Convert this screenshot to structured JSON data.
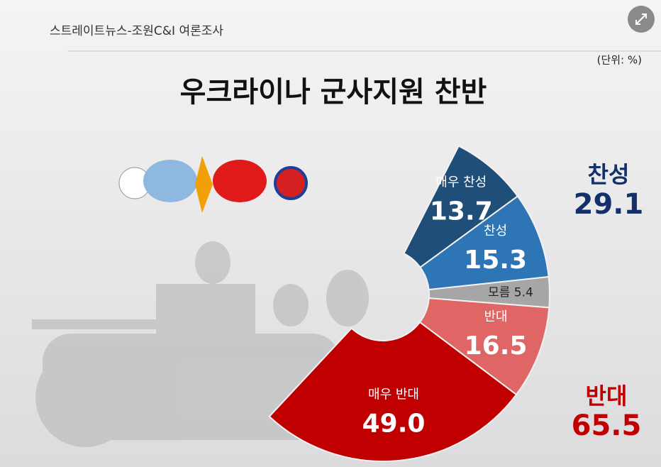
{
  "chart_data": {
    "type": "pie",
    "source": "스트레이트뉴스-조원C&I 여론조사",
    "unit": "(단위: %)",
    "title": "우크라이나 군사지원 찬반",
    "categories": [
      "매우 찬성",
      "찬성",
      "모름",
      "반대",
      "매우 반대"
    ],
    "values": [
      13.7,
      15.3,
      5.4,
      16.5,
      49.0
    ],
    "value_labels": [
      "13.7",
      "15.3",
      "5.4",
      "16.5",
      "49.0"
    ],
    "colors": [
      "#1f4e79",
      "#2e75b6",
      "#a6a6a6",
      "#e06666",
      "#c00000"
    ],
    "summary": [
      {
        "label": "찬성",
        "value": 29.1,
        "color": "#14306b"
      },
      {
        "label": "반대",
        "value": 65.5,
        "color": "#c00000"
      }
    ]
  }
}
